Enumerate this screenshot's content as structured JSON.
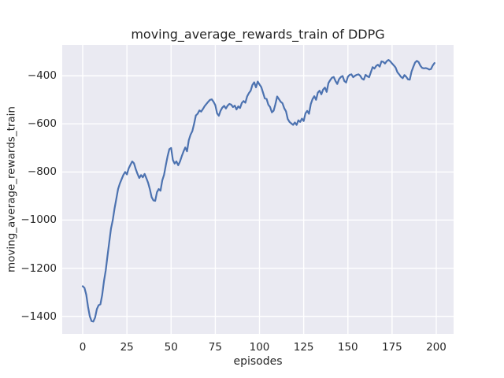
{
  "figure": {
    "background_color": "#ffffff",
    "axes_background_color": "#eaeaf2",
    "grid_color": "#ffffff",
    "text_color": "#262626"
  },
  "chart_data": {
    "type": "line",
    "title": "moving_average_rewards_train of DDPG",
    "xlabel": "episodes",
    "ylabel": "moving_average_rewards_train",
    "grid": true,
    "legend": "none",
    "xlim": [
      -11.6,
      209.8
    ],
    "ylim": [
      -1473.2,
      -271.5
    ],
    "x_ticks": [
      0,
      25,
      50,
      75,
      100,
      125,
      150,
      175,
      200
    ],
    "y_ticks": [
      -400,
      -600,
      -800,
      -1000,
      -1200,
      -1400
    ],
    "series": [
      {
        "name": "moving_average_rewards_train",
        "color": "#4c72b0",
        "points": [
          [
            0,
            -1275
          ],
          [
            1,
            -1282
          ],
          [
            2,
            -1310
          ],
          [
            3,
            -1360
          ],
          [
            4,
            -1400
          ],
          [
            5,
            -1420
          ],
          [
            6,
            -1422
          ],
          [
            7,
            -1405
          ],
          [
            8,
            -1370
          ],
          [
            9,
            -1354
          ],
          [
            10,
            -1350
          ],
          [
            11,
            -1312
          ],
          [
            12,
            -1255
          ],
          [
            13,
            -1210
          ],
          [
            14,
            -1150
          ],
          [
            15,
            -1092
          ],
          [
            16,
            -1035
          ],
          [
            17,
            -1000
          ],
          [
            18,
            -952
          ],
          [
            19,
            -912
          ],
          [
            20,
            -871
          ],
          [
            21,
            -848
          ],
          [
            22,
            -830
          ],
          [
            23,
            -812
          ],
          [
            24,
            -800
          ],
          [
            25,
            -810
          ],
          [
            26,
            -785
          ],
          [
            27,
            -770
          ],
          [
            28,
            -756
          ],
          [
            29,
            -764
          ],
          [
            30,
            -788
          ],
          [
            31,
            -808
          ],
          [
            32,
            -825
          ],
          [
            33,
            -813
          ],
          [
            34,
            -822
          ],
          [
            35,
            -808
          ],
          [
            36,
            -826
          ],
          [
            37,
            -845
          ],
          [
            38,
            -872
          ],
          [
            39,
            -905
          ],
          [
            40,
            -918
          ],
          [
            41,
            -920
          ],
          [
            42,
            -884
          ],
          [
            43,
            -871
          ],
          [
            44,
            -878
          ],
          [
            45,
            -835
          ],
          [
            46,
            -812
          ],
          [
            47,
            -772
          ],
          [
            48,
            -735
          ],
          [
            49,
            -705
          ],
          [
            50,
            -700
          ],
          [
            51,
            -750
          ],
          [
            52,
            -765
          ],
          [
            53,
            -756
          ],
          [
            54,
            -772
          ],
          [
            55,
            -757
          ],
          [
            56,
            -735
          ],
          [
            57,
            -715
          ],
          [
            58,
            -698
          ],
          [
            59,
            -714
          ],
          [
            60,
            -668
          ],
          [
            61,
            -645
          ],
          [
            62,
            -630
          ],
          [
            63,
            -600
          ],
          [
            64,
            -565
          ],
          [
            65,
            -558
          ],
          [
            66,
            -544
          ],
          [
            67,
            -549
          ],
          [
            68,
            -538
          ],
          [
            69,
            -526
          ],
          [
            70,
            -517
          ],
          [
            71,
            -508
          ],
          [
            72,
            -500
          ],
          [
            73,
            -498
          ],
          [
            74,
            -508
          ],
          [
            75,
            -522
          ],
          [
            76,
            -556
          ],
          [
            77,
            -566
          ],
          [
            78,
            -545
          ],
          [
            79,
            -532
          ],
          [
            80,
            -525
          ],
          [
            81,
            -536
          ],
          [
            82,
            -524
          ],
          [
            83,
            -517
          ],
          [
            84,
            -520
          ],
          [
            85,
            -530
          ],
          [
            86,
            -524
          ],
          [
            87,
            -540
          ],
          [
            88,
            -527
          ],
          [
            89,
            -534
          ],
          [
            90,
            -513
          ],
          [
            91,
            -505
          ],
          [
            92,
            -512
          ],
          [
            93,
            -486
          ],
          [
            94,
            -472
          ],
          [
            95,
            -462
          ],
          [
            96,
            -438
          ],
          [
            97,
            -427
          ],
          [
            98,
            -448
          ],
          [
            99,
            -424
          ],
          [
            100,
            -436
          ],
          [
            101,
            -447
          ],
          [
            102,
            -470
          ],
          [
            103,
            -494
          ],
          [
            104,
            -496
          ],
          [
            105,
            -520
          ],
          [
            106,
            -530
          ],
          [
            107,
            -552
          ],
          [
            108,
            -545
          ],
          [
            109,
            -518
          ],
          [
            110,
            -486
          ],
          [
            111,
            -497
          ],
          [
            112,
            -508
          ],
          [
            113,
            -514
          ],
          [
            114,
            -535
          ],
          [
            115,
            -548
          ],
          [
            116,
            -580
          ],
          [
            117,
            -592
          ],
          [
            118,
            -598
          ],
          [
            119,
            -604
          ],
          [
            120,
            -594
          ],
          [
            121,
            -604
          ],
          [
            122,
            -585
          ],
          [
            123,
            -592
          ],
          [
            124,
            -578
          ],
          [
            125,
            -588
          ],
          [
            126,
            -556
          ],
          [
            127,
            -546
          ],
          [
            128,
            -558
          ],
          [
            129,
            -518
          ],
          [
            130,
            -497
          ],
          [
            131,
            -485
          ],
          [
            132,
            -500
          ],
          [
            133,
            -470
          ],
          [
            134,
            -462
          ],
          [
            135,
            -477
          ],
          [
            136,
            -457
          ],
          [
            137,
            -449
          ],
          [
            138,
            -467
          ],
          [
            139,
            -430
          ],
          [
            140,
            -418
          ],
          [
            141,
            -408
          ],
          [
            142,
            -405
          ],
          [
            143,
            -422
          ],
          [
            144,
            -434
          ],
          [
            145,
            -414
          ],
          [
            146,
            -405
          ],
          [
            147,
            -401
          ],
          [
            148,
            -422
          ],
          [
            149,
            -428
          ],
          [
            150,
            -404
          ],
          [
            151,
            -396
          ],
          [
            152,
            -394
          ],
          [
            153,
            -406
          ],
          [
            154,
            -400
          ],
          [
            155,
            -396
          ],
          [
            156,
            -394
          ],
          [
            157,
            -400
          ],
          [
            158,
            -412
          ],
          [
            159,
            -416
          ],
          [
            160,
            -396
          ],
          [
            161,
            -402
          ],
          [
            162,
            -406
          ],
          [
            163,
            -385
          ],
          [
            164,
            -364
          ],
          [
            165,
            -370
          ],
          [
            166,
            -359
          ],
          [
            167,
            -354
          ],
          [
            168,
            -362
          ],
          [
            169,
            -340
          ],
          [
            170,
            -342
          ],
          [
            171,
            -349
          ],
          [
            172,
            -339
          ],
          [
            173,
            -334
          ],
          [
            174,
            -340
          ],
          [
            175,
            -349
          ],
          [
            176,
            -357
          ],
          [
            177,
            -366
          ],
          [
            178,
            -385
          ],
          [
            179,
            -394
          ],
          [
            180,
            -404
          ],
          [
            181,
            -410
          ],
          [
            182,
            -397
          ],
          [
            183,
            -404
          ],
          [
            184,
            -415
          ],
          [
            185,
            -416
          ],
          [
            186,
            -383
          ],
          [
            187,
            -363
          ],
          [
            188,
            -345
          ],
          [
            189,
            -338
          ],
          [
            190,
            -343
          ],
          [
            191,
            -358
          ],
          [
            192,
            -367
          ],
          [
            193,
            -369
          ],
          [
            194,
            -368
          ],
          [
            195,
            -370
          ],
          [
            196,
            -374
          ],
          [
            197,
            -372
          ],
          [
            198,
            -357
          ],
          [
            199,
            -347
          ]
        ]
      }
    ]
  }
}
